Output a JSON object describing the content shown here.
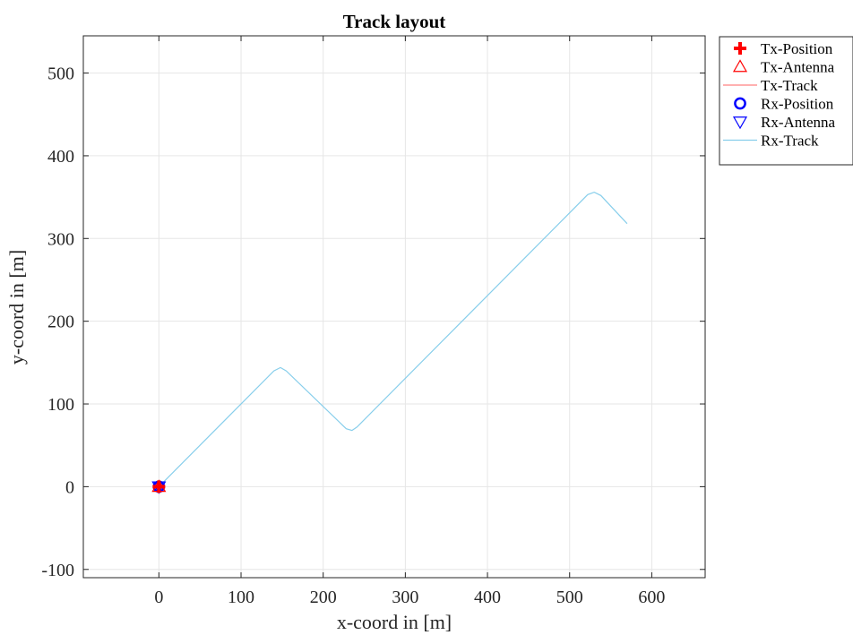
{
  "chart_data": {
    "type": "line",
    "title": "Track layout",
    "xlabel": "x-coord in [m]",
    "ylabel": "y-coord in [m]",
    "xlim": [
      -92,
      665
    ],
    "ylim": [
      -110,
      545
    ],
    "xticks": [
      0,
      100,
      200,
      300,
      400,
      500,
      600
    ],
    "yticks": [
      -100,
      0,
      100,
      200,
      300,
      400,
      500
    ],
    "grid": true,
    "legend_position": "outside-top-right",
    "series": [
      {
        "name": "Tx-Position",
        "kind": "marker",
        "marker": "plus",
        "color": "#ff0000",
        "points": [
          [
            0,
            0
          ]
        ]
      },
      {
        "name": "Tx-Antenna",
        "kind": "marker",
        "marker": "triangle-up",
        "color": "#ff0000",
        "points": [
          [
            0,
            0
          ]
        ]
      },
      {
        "name": "Tx-Track",
        "kind": "line",
        "color": "#ff8080",
        "points": [
          [
            0,
            0
          ]
        ]
      },
      {
        "name": "Rx-Position",
        "kind": "marker",
        "marker": "circle",
        "color": "#0000ff",
        "points": [
          [
            0,
            0
          ]
        ]
      },
      {
        "name": "Rx-Antenna",
        "kind": "marker",
        "marker": "triangle-down",
        "color": "#0000ff",
        "points": [
          [
            0,
            0
          ]
        ]
      },
      {
        "name": "Rx-Track",
        "kind": "line",
        "color": "#87ceeb",
        "points": [
          [
            0,
            0
          ],
          [
            140,
            140
          ],
          [
            148,
            144
          ],
          [
            155,
            140
          ],
          [
            228,
            70
          ],
          [
            235,
            68
          ],
          [
            241,
            72
          ],
          [
            522,
            353
          ],
          [
            530,
            356
          ],
          [
            538,
            352
          ],
          [
            570,
            318
          ]
        ]
      }
    ]
  }
}
